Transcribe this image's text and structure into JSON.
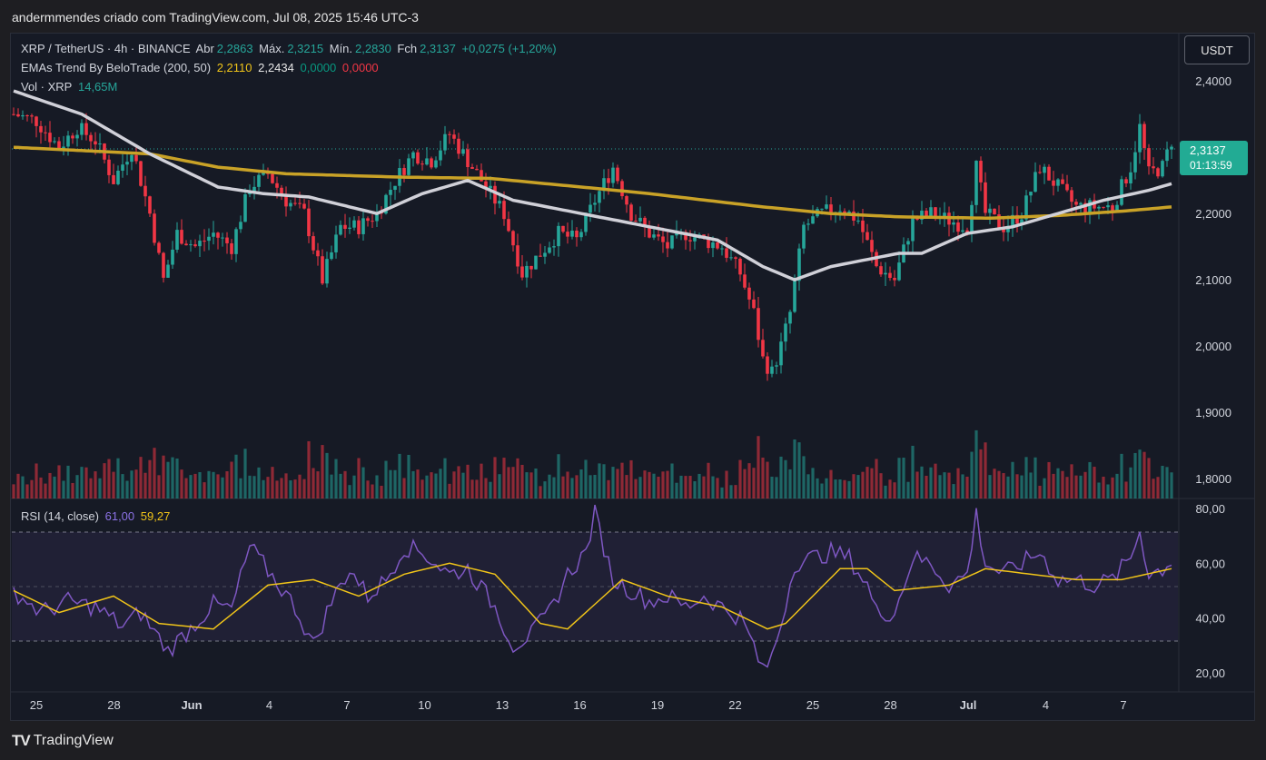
{
  "header": {
    "caption": "andermmendes criado com TradingView.com, Jul 08, 2025 15:46 UTC-3"
  },
  "legend": {
    "symbol": "XRP / TetherUS · 4h · BINANCE",
    "open_label": "Abr",
    "open": "2,2863",
    "high_label": "Máx.",
    "high": "2,3215",
    "low_label": "Mín.",
    "low": "2,2830",
    "close_label": "Fch",
    "close": "2,3137",
    "change": "+0,0275 (+1,20%)",
    "ema_name": "EMAs Trend By BeloTrade (200, 50)",
    "ema200": "2,2110",
    "ema50": "2,2434",
    "ema_v3": "0,0000",
    "ema_v4": "0,0000",
    "vol_name": "Vol · XRP",
    "vol_value": "14,65M",
    "rsi_name": "RSI (14, close)",
    "rsi_value": "61,00",
    "rsi_ma": "59,27"
  },
  "currency_button": "USDT",
  "price_tag": {
    "price": "2,3137",
    "countdown": "01:13:59"
  },
  "footer": {
    "brand": "TradingView",
    "logo": "TV"
  },
  "colors": {
    "up": "#26a69a",
    "down": "#f23645",
    "ema200": "#c9a227",
    "ema50": "#d0d0d8",
    "rsi": "#7e57c2",
    "rsi_ma": "#f0c419"
  },
  "chart_data": {
    "type": "candlestick",
    "x_tick_labels": [
      "25",
      "28",
      "Jun",
      "4",
      "7",
      "10",
      "13",
      "16",
      "19",
      "22",
      "25",
      "28",
      "Jul",
      "4",
      "7"
    ],
    "price_axis": {
      "ticks": [
        "2,4000",
        "2,3000",
        "2,2000",
        "2,1000",
        "2,0000",
        "1,9000",
        "1,8000"
      ],
      "tick_values": [
        2.4,
        2.3,
        2.2,
        2.1,
        2.0,
        1.9,
        1.8
      ],
      "range": [
        1.77,
        2.44
      ]
    },
    "rsi_axis": {
      "ticks": [
        "80,00",
        "60,00",
        "40,00",
        "20,00"
      ],
      "tick_values": [
        80,
        60,
        40,
        20
      ],
      "range": [
        13,
        80
      ],
      "band": [
        30,
        70
      ],
      "mid": 50
    },
    "price_anchors": [
      [
        0,
        2.35
      ],
      [
        5,
        2.34
      ],
      [
        10,
        2.3
      ],
      [
        14,
        2.33
      ],
      [
        18,
        2.31
      ],
      [
        22,
        2.25
      ],
      [
        26,
        2.3
      ],
      [
        30,
        2.2
      ],
      [
        33,
        2.1
      ],
      [
        36,
        2.17
      ],
      [
        40,
        2.15
      ],
      [
        44,
        2.17
      ],
      [
        48,
        2.15
      ],
      [
        52,
        2.24
      ],
      [
        56,
        2.26
      ],
      [
        60,
        2.22
      ],
      [
        64,
        2.2
      ],
      [
        68,
        2.1
      ],
      [
        72,
        2.18
      ],
      [
        76,
        2.18
      ],
      [
        80,
        2.2
      ],
      [
        84,
        2.25
      ],
      [
        88,
        2.29
      ],
      [
        92,
        2.28
      ],
      [
        96,
        2.32
      ],
      [
        100,
        2.28
      ],
      [
        104,
        2.24
      ],
      [
        108,
        2.2
      ],
      [
        112,
        2.11
      ],
      [
        116,
        2.14
      ],
      [
        120,
        2.17
      ],
      [
        124,
        2.16
      ],
      [
        128,
        2.22
      ],
      [
        132,
        2.27
      ],
      [
        136,
        2.2
      ],
      [
        140,
        2.17
      ],
      [
        144,
        2.15
      ],
      [
        148,
        2.17
      ],
      [
        152,
        2.16
      ],
      [
        156,
        2.15
      ],
      [
        160,
        2.11
      ],
      [
        163,
        2.05
      ],
      [
        165,
        1.98
      ],
      [
        167,
        1.96
      ],
      [
        169,
        2.0
      ],
      [
        171,
        2.05
      ],
      [
        174,
        2.18
      ],
      [
        178,
        2.2
      ],
      [
        182,
        2.21
      ],
      [
        186,
        2.19
      ],
      [
        190,
        2.12
      ],
      [
        194,
        2.1
      ],
      [
        198,
        2.19
      ],
      [
        202,
        2.2
      ],
      [
        206,
        2.19
      ],
      [
        210,
        2.18
      ],
      [
        212,
        2.27
      ],
      [
        214,
        2.2
      ],
      [
        218,
        2.18
      ],
      [
        222,
        2.2
      ],
      [
        226,
        2.27
      ],
      [
        230,
        2.24
      ],
      [
        234,
        2.21
      ],
      [
        238,
        2.21
      ],
      [
        242,
        2.21
      ],
      [
        246,
        2.27
      ],
      [
        248,
        2.33
      ],
      [
        250,
        2.26
      ],
      [
        253,
        2.27
      ],
      [
        255,
        2.31
      ]
    ],
    "ema200_anchors": [
      [
        0,
        2.3
      ],
      [
        30,
        2.29
      ],
      [
        45,
        2.27
      ],
      [
        60,
        2.26
      ],
      [
        85,
        2.255
      ],
      [
        105,
        2.253
      ],
      [
        125,
        2.24
      ],
      [
        140,
        2.23
      ],
      [
        165,
        2.21
      ],
      [
        180,
        2.2
      ],
      [
        195,
        2.195
      ],
      [
        215,
        2.193
      ],
      [
        230,
        2.197
      ],
      [
        245,
        2.204
      ],
      [
        255,
        2.21
      ]
    ],
    "ema50_anchors": [
      [
        0,
        2.385
      ],
      [
        15,
        2.35
      ],
      [
        30,
        2.29
      ],
      [
        45,
        2.24
      ],
      [
        55,
        2.23
      ],
      [
        65,
        2.225
      ],
      [
        80,
        2.2
      ],
      [
        90,
        2.23
      ],
      [
        100,
        2.25
      ],
      [
        110,
        2.22
      ],
      [
        125,
        2.2
      ],
      [
        140,
        2.18
      ],
      [
        155,
        2.16
      ],
      [
        165,
        2.12
      ],
      [
        172,
        2.1
      ],
      [
        180,
        2.12
      ],
      [
        195,
        2.14
      ],
      [
        200,
        2.14
      ],
      [
        210,
        2.17
      ],
      [
        220,
        2.18
      ],
      [
        230,
        2.2
      ],
      [
        240,
        2.22
      ],
      [
        250,
        2.235
      ],
      [
        255,
        2.245
      ]
    ],
    "rsi_anchors": [
      [
        0,
        50
      ],
      [
        6,
        42
      ],
      [
        12,
        46
      ],
      [
        18,
        44
      ],
      [
        24,
        37
      ],
      [
        28,
        42
      ],
      [
        34,
        28
      ],
      [
        40,
        38
      ],
      [
        44,
        45
      ],
      [
        48,
        43
      ],
      [
        52,
        66
      ],
      [
        58,
        53
      ],
      [
        62,
        44
      ],
      [
        66,
        30
      ],
      [
        70,
        46
      ],
      [
        74,
        58
      ],
      [
        78,
        48
      ],
      [
        82,
        54
      ],
      [
        86,
        66
      ],
      [
        90,
        64
      ],
      [
        96,
        56
      ],
      [
        100,
        58
      ],
      [
        106,
        44
      ],
      [
        110,
        30
      ],
      [
        114,
        34
      ],
      [
        118,
        42
      ],
      [
        122,
        56
      ],
      [
        126,
        64
      ],
      [
        128,
        78
      ],
      [
        132,
        54
      ],
      [
        136,
        50
      ],
      [
        140,
        46
      ],
      [
        144,
        48
      ],
      [
        148,
        44
      ],
      [
        152,
        48
      ],
      [
        156,
        44
      ],
      [
        160,
        40
      ],
      [
        163,
        30
      ],
      [
        165,
        20
      ],
      [
        167,
        26
      ],
      [
        169,
        38
      ],
      [
        172,
        60
      ],
      [
        176,
        62
      ],
      [
        180,
        64
      ],
      [
        184,
        62
      ],
      [
        188,
        52
      ],
      [
        190,
        42
      ],
      [
        194,
        42
      ],
      [
        198,
        62
      ],
      [
        202,
        60
      ],
      [
        206,
        52
      ],
      [
        210,
        56
      ],
      [
        212,
        78
      ],
      [
        214,
        60
      ],
      [
        218,
        56
      ],
      [
        222,
        60
      ],
      [
        226,
        64
      ],
      [
        230,
        54
      ],
      [
        234,
        54
      ],
      [
        238,
        52
      ],
      [
        242,
        54
      ],
      [
        246,
        62
      ],
      [
        248,
        72
      ],
      [
        250,
        56
      ],
      [
        253,
        58
      ],
      [
        255,
        61
      ]
    ],
    "rsi_ma_anchors": [
      [
        0,
        50
      ],
      [
        10,
        42
      ],
      [
        22,
        48
      ],
      [
        32,
        38
      ],
      [
        44,
        36
      ],
      [
        56,
        52
      ],
      [
        66,
        54
      ],
      [
        76,
        48
      ],
      [
        86,
        56
      ],
      [
        96,
        60
      ],
      [
        106,
        56
      ],
      [
        116,
        38
      ],
      [
        122,
        36
      ],
      [
        134,
        54
      ],
      [
        144,
        48
      ],
      [
        156,
        44
      ],
      [
        166,
        36
      ],
      [
        170,
        38
      ],
      [
        182,
        58
      ],
      [
        188,
        58
      ],
      [
        194,
        50
      ],
      [
        206,
        52
      ],
      [
        214,
        58
      ],
      [
        224,
        56
      ],
      [
        234,
        54
      ],
      [
        244,
        54
      ],
      [
        255,
        58
      ]
    ],
    "candle_count": 256
  }
}
